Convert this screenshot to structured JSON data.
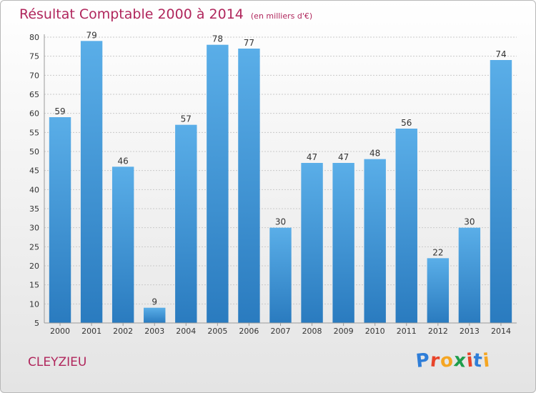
{
  "chart_data": {
    "type": "bar",
    "title": "Résultat Comptable 2000 à 2014",
    "subtitle": "(en milliers d'€)",
    "categories": [
      "2000",
      "2001",
      "2002",
      "2003",
      "2004",
      "2005",
      "2006",
      "2007",
      "2008",
      "2009",
      "2010",
      "2011",
      "2012",
      "2013",
      "2014"
    ],
    "values": [
      59,
      79,
      46,
      9,
      57,
      78,
      77,
      30,
      47,
      47,
      48,
      56,
      22,
      30,
      74
    ],
    "ylim": [
      5,
      80
    ],
    "yticks": [
      5,
      10,
      15,
      20,
      25,
      30,
      35,
      40,
      45,
      50,
      55,
      60,
      65,
      70,
      75,
      80
    ],
    "grid": true,
    "colors": {
      "bar_light": "#5aaee8",
      "bar_dark": "#2a7bbf",
      "grid": "#c9c9c9",
      "axis": "#9a9a9a",
      "title": "#b0265c"
    }
  },
  "place_name": "CLEYZIEU",
  "logo": {
    "letters": [
      "P",
      "r",
      "o",
      "x",
      "i",
      "t",
      "i"
    ],
    "colors": [
      "#2f7ed8",
      "#e8442a",
      "#f5a623",
      "#1e9d4b",
      "#e8442a",
      "#2f7ed8",
      "#f5a623"
    ]
  }
}
